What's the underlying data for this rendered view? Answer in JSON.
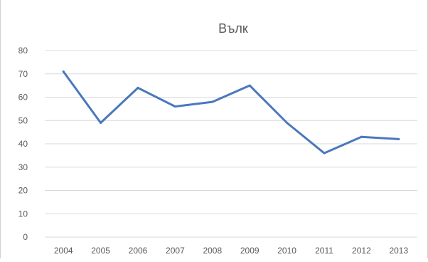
{
  "chart_data": {
    "type": "line",
    "title": "Вълк",
    "x": [
      "2004",
      "2005",
      "2006",
      "2007",
      "2008",
      "2009",
      "2010",
      "2011",
      "2012",
      "2013"
    ],
    "series": [
      {
        "values": [
          71,
          49,
          64,
          56,
          58,
          65,
          49,
          36,
          43,
          42
        ]
      }
    ],
    "ylim": [
      0,
      80
    ],
    "yticks": [
      0,
      10,
      20,
      30,
      40,
      50,
      60,
      70,
      80
    ],
    "grid": true,
    "legend": "none",
    "colors": {
      "line": "#4a78bd",
      "grid": "#d9d9d9",
      "text": "#595959"
    }
  }
}
